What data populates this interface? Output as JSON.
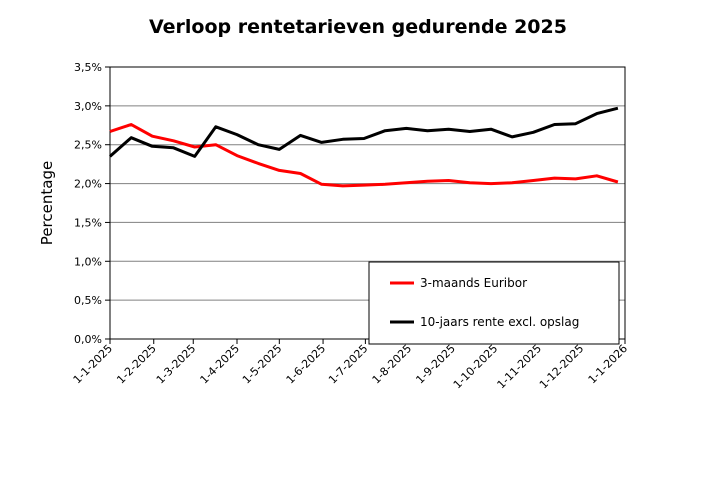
{
  "chart_data": {
    "type": "line",
    "title": "Verloop rentetarieven gedurende 2025",
    "xlabel": "",
    "ylabel": "Percentage",
    "ylim": [
      0,
      3.5
    ],
    "y_ticks": [
      "0,0%",
      "0,5%",
      "1,0%",
      "1,5%",
      "2,0%",
      "2,5%",
      "3,0%",
      "3,5%"
    ],
    "x_ticks": [
      "1-1-2025",
      "1-2-2025",
      "1-3-2025",
      "1-4-2025",
      "1-5-2025",
      "1-6-2025",
      "1-7-2025",
      "1-8-2025",
      "1-9-2025",
      "1-10-2025",
      "1-11-2025",
      "1-12-2025",
      "1-1-2026"
    ],
    "x_range": [
      "2025-01-01",
      "2026-01-01"
    ],
    "grid": "horizontal",
    "legend_position": "bottom-right",
    "series": [
      {
        "name": "3-maands Euribor",
        "color": "#ff0000",
        "x": [
          "2025-01-01",
          "2025-01-16",
          "2025-01-31",
          "2025-02-15",
          "2025-03-02",
          "2025-03-17",
          "2025-04-01",
          "2025-04-16",
          "2025-05-01",
          "2025-05-16",
          "2025-05-31",
          "2025-06-15",
          "2025-06-30",
          "2025-07-15",
          "2025-07-30",
          "2025-08-14",
          "2025-08-29",
          "2025-09-13",
          "2025-09-28",
          "2025-10-13",
          "2025-10-28",
          "2025-11-12",
          "2025-11-27",
          "2025-12-12",
          "2025-12-27"
        ],
        "values": [
          2.67,
          2.76,
          2.61,
          2.55,
          2.47,
          2.5,
          2.36,
          2.26,
          2.17,
          2.13,
          1.99,
          1.97,
          1.98,
          1.99,
          2.01,
          2.03,
          2.04,
          2.01,
          2.0,
          2.01,
          2.04,
          2.07,
          2.06,
          2.1,
          2.02
        ]
      },
      {
        "name": "10-jaars rente excl. opslag",
        "color": "#000000",
        "x": [
          "2025-01-01",
          "2025-01-16",
          "2025-01-31",
          "2025-02-15",
          "2025-03-02",
          "2025-03-17",
          "2025-04-01",
          "2025-04-16",
          "2025-05-01",
          "2025-05-16",
          "2025-05-31",
          "2025-06-15",
          "2025-06-30",
          "2025-07-15",
          "2025-07-30",
          "2025-08-14",
          "2025-08-29",
          "2025-09-13",
          "2025-09-28",
          "2025-10-13",
          "2025-10-28",
          "2025-11-12",
          "2025-11-27",
          "2025-12-12",
          "2025-12-27"
        ],
        "values": [
          2.35,
          2.59,
          2.48,
          2.46,
          2.35,
          2.73,
          2.63,
          2.5,
          2.44,
          2.62,
          2.53,
          2.57,
          2.58,
          2.68,
          2.71,
          2.68,
          2.7,
          2.67,
          2.7,
          2.6,
          2.66,
          2.76,
          2.77,
          2.9,
          2.97
        ]
      }
    ]
  }
}
